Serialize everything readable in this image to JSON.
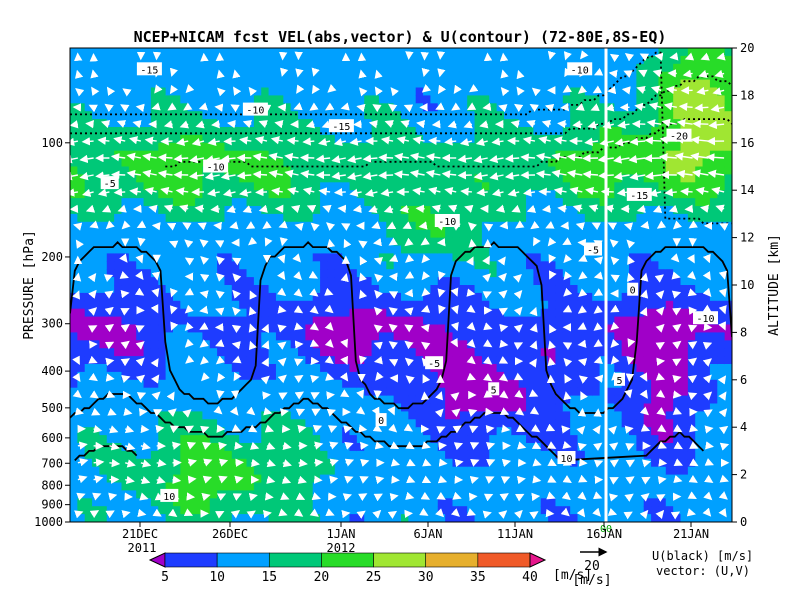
{
  "chart_data": {
    "type": "heatmap",
    "title": "NCEP+NICAM  fcst VEL(abs,vector) & U(contour)  (72-80E,8S-EQ)",
    "ylabel_left": "PRESSURE [hPa]",
    "ylabel_right": "ALTITUDE [km]",
    "pressure_ticks": [
      100,
      200,
      300,
      400,
      500,
      600,
      700,
      800,
      900,
      1000
    ],
    "altitude_ticks": [
      0,
      2,
      4,
      6,
      8,
      10,
      12,
      14,
      16,
      18,
      20
    ],
    "altitude_range": [
      0,
      20
    ],
    "date_ticks": [
      "21DEC",
      "26DEC",
      "1JAN",
      "6JAN",
      "11JAN",
      "16JAN",
      "21JAN"
    ],
    "year_labels": [
      "2011",
      "2012"
    ],
    "forecast_marker_label": "00",
    "colorbar": {
      "levels": [
        5,
        10,
        15,
        20,
        25,
        30,
        35,
        40
      ],
      "unit": "[m/s]",
      "colors": [
        "#a000c8",
        "#1e3cff",
        "#00a0ff",
        "#00c878",
        "#28dc28",
        "#a0e632",
        "#e6af2d",
        "#f05a28",
        "#e6168c"
      ]
    },
    "contour_labels": [
      {
        "value": "-15",
        "x": 0.12,
        "y": 19.1
      },
      {
        "value": "-10",
        "x": 0.28,
        "y": 17.4
      },
      {
        "value": "-5",
        "x": 0.06,
        "y": 14.3
      },
      {
        "value": "-10",
        "x": 0.22,
        "y": 15.0
      },
      {
        "value": "-15",
        "x": 0.41,
        "y": 16.7
      },
      {
        "value": "-10",
        "x": 0.57,
        "y": 12.7
      },
      {
        "value": "-5",
        "x": 0.79,
        "y": 11.5
      },
      {
        "value": "0",
        "x": 0.85,
        "y": 9.8
      },
      {
        "value": "5",
        "x": 0.64,
        "y": 5.6
      },
      {
        "value": "10",
        "x": 0.75,
        "y": 2.7
      },
      {
        "value": "-5",
        "x": 0.55,
        "y": 6.7
      },
      {
        "value": "-10",
        "x": 0.77,
        "y": 19.1
      },
      {
        "value": "-20",
        "x": 0.92,
        "y": 16.3
      },
      {
        "value": "-15",
        "x": 0.86,
        "y": 13.8
      },
      {
        "value": "-10",
        "x": 0.96,
        "y": 8.6
      },
      {
        "value": "0",
        "x": 0.47,
        "y": 4.3
      },
      {
        "value": "5",
        "x": 0.83,
        "y": 6.0
      },
      {
        "value": "10",
        "x": 0.15,
        "y": 1.1
      }
    ],
    "legend_vector": {
      "ref_value": "20",
      "ref_unit": "[m/s]",
      "note_line1": "U(black) [m/s]",
      "note_line2": "vector: (U,V)"
    }
  }
}
